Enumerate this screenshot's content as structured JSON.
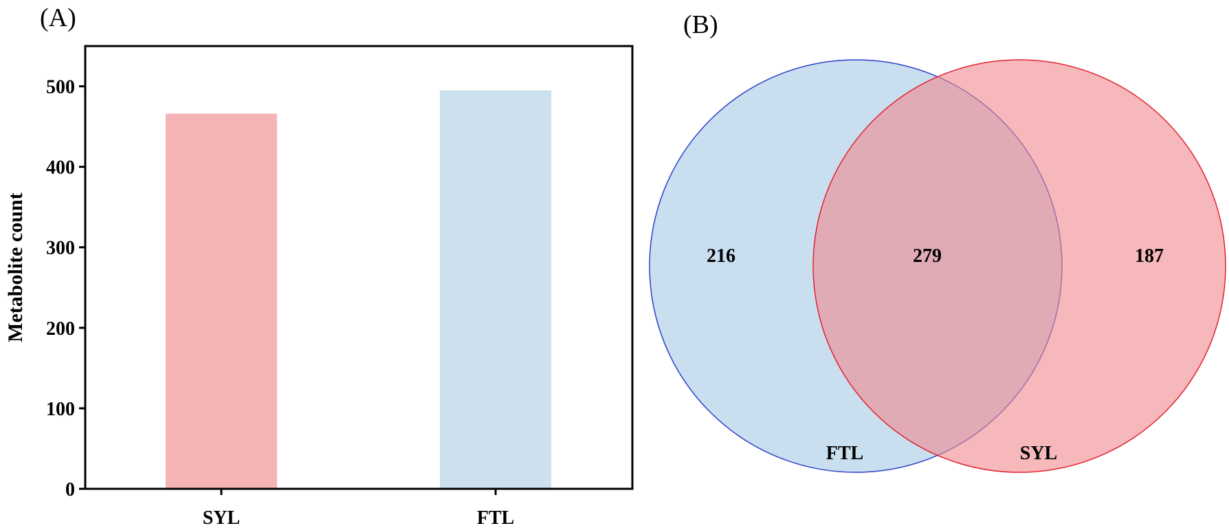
{
  "colors": {
    "syl": "#f4b3b5",
    "ftl": "#cce0ee",
    "venn_ftl_fill": "#c9dff0",
    "venn_ftl_stroke": "#2b3fc7",
    "venn_syl_fill": "#f1888f",
    "venn_syl_stroke": "#e0222e"
  },
  "chart_data": [
    {
      "panel_label": "(A)",
      "type": "bar",
      "categories": [
        "SYL",
        "FTL"
      ],
      "values": [
        466,
        495
      ],
      "ylabel": "Metabolite count",
      "xlabel": "",
      "ylim": [
        0,
        550
      ],
      "yticks": [
        0,
        100,
        200,
        300,
        400,
        500
      ],
      "ytick_labels": [
        "0",
        "100",
        "200",
        "300",
        "400",
        "500"
      ],
      "grid": false,
      "legend": "none"
    },
    {
      "panel_label": "(B)",
      "type": "venn",
      "sets": [
        {
          "label": "FTL",
          "only_count": "216"
        },
        {
          "label": "SYL",
          "only_count": "187"
        }
      ],
      "intersection_count": "279"
    }
  ]
}
